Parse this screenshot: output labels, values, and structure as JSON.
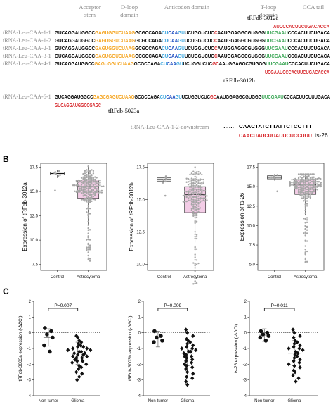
{
  "colors": {
    "acceptor": "#000000",
    "dloop": "#f5a623",
    "anticodon": "#3fa9e0",
    "anticodon_core": "#1f4fc2",
    "tloop": "#3aa655",
    "red": "#d7262a",
    "box_fill": "#f3cce6",
    "control_box": "#e8e8e8",
    "dot": "#a6a6a6"
  },
  "panel_a": {
    "domains": [
      "Acceptor stem",
      "D-loop domain",
      "Anticodon domain",
      "T-loop domain",
      "CCA tail"
    ],
    "rows": [
      {
        "name": "tRNA-Leu-CAA-1-1",
        "segs": [
          [
            "GUCAGGAUGGCC",
            "acceptor"
          ],
          [
            "GAGUGGUCUAAG",
            "dloop"
          ],
          [
            "GCGCCAGA",
            "acceptor"
          ],
          [
            "CU",
            "anticodon"
          ],
          [
            "CAA",
            "anticodon_core"
          ],
          [
            "GU",
            "anticodon"
          ],
          [
            "UCUGGUCUC",
            "acceptor"
          ],
          [
            "C",
            "red"
          ],
          [
            "AAUGGAGGCGUGGG",
            "acceptor"
          ],
          [
            "UUCGAAU",
            "tloop"
          ],
          [
            "CCCACUUCUGACA",
            "acceptor"
          ]
        ]
      },
      {
        "name": "tRNA-Leu-CAA-1-2",
        "segs": [
          [
            "GUCAGGAUGGCC",
            "acceptor"
          ],
          [
            "GAGUGGUCUAAG",
            "dloop"
          ],
          [
            "GCGCCAGA",
            "acceptor"
          ],
          [
            "CU",
            "anticodon"
          ],
          [
            "CAA",
            "anticodon_core"
          ],
          [
            "GU",
            "anticodon"
          ],
          [
            "UCUGGUCUC",
            "acceptor"
          ],
          [
            "C",
            "red"
          ],
          [
            "AAUGGAGGCGUGGG",
            "acceptor"
          ],
          [
            "UUCGAAU",
            "tloop"
          ],
          [
            "CCCACUUCUGACA",
            "acceptor"
          ]
        ]
      },
      {
        "name": "tRNA-Leu-CAA-2-1",
        "segs": [
          [
            "GUCAGGAUGGCC",
            "acceptor"
          ],
          [
            "GAGUGGUCUAAG",
            "dloop"
          ],
          [
            "GCGCCAGA",
            "acceptor"
          ],
          [
            "CU",
            "anticodon"
          ],
          [
            "CAA",
            "anticodon_core"
          ],
          [
            "GU",
            "anticodon"
          ],
          [
            "UCUGGUCUC",
            "acceptor"
          ],
          [
            "C",
            "red"
          ],
          [
            "AAUGGAGGCGUGGG",
            "acceptor"
          ],
          [
            "UUCGAAU",
            "tloop"
          ],
          [
            "CCCACUUCUGACA",
            "acceptor"
          ]
        ]
      },
      {
        "name": "tRNA-Leu-CAA-3-1",
        "segs": [
          [
            "GUCAGGAUGGCC",
            "acceptor"
          ],
          [
            "GAGUGGUCUAAG",
            "dloop"
          ],
          [
            "GCGCCAGA",
            "acceptor"
          ],
          [
            "CU",
            "anticodon"
          ],
          [
            "CAA",
            "anticodon_core"
          ],
          [
            "GU",
            "anticodon"
          ],
          [
            "UCUGGUCUC",
            "acceptor"
          ],
          [
            "C",
            "red"
          ],
          [
            "AAUGGAGGCGUGGG",
            "acceptor"
          ],
          [
            "UUCGAAU",
            "tloop"
          ],
          [
            "CCCACUUCUGACA",
            "acceptor"
          ]
        ]
      },
      {
        "name": "tRNA-Leu-CAA-4-1",
        "segs": [
          [
            "GUCAGGAUGGCC",
            "acceptor"
          ],
          [
            "GAGUGGUCUAAG",
            "dloop"
          ],
          [
            "GCGCCAGA",
            "acceptor"
          ],
          [
            "CU",
            "anticodon"
          ],
          [
            "CAA",
            "anticodon_core"
          ],
          [
            "GU",
            "anticodon"
          ],
          [
            "UCUGGUCUC",
            "acceptor"
          ],
          [
            "GC",
            "red"
          ],
          [
            "AAUGGAGGCGUGGG",
            "acceptor"
          ],
          [
            "UUCGAAU",
            "tloop"
          ],
          [
            "CCCACUUCUGACA",
            "acceptor"
          ]
        ]
      }
    ],
    "row6": {
      "name": "tRNA-Leu-CAA-6-1",
      "segs": [
        [
          "GUCAGGAUGGCC",
          "acceptor"
        ],
        [
          "GAGCGAGUCUAAG",
          "dloop"
        ],
        [
          "GCGCCAGA",
          "acceptor"
        ],
        [
          "CU",
          "anticodon"
        ],
        [
          "CAA",
          "anticodon_core"
        ],
        [
          "GU",
          "anticodon"
        ],
        [
          "UCUGGUCUC",
          "acceptor"
        ],
        [
          "GC",
          "red"
        ],
        [
          "AAUGGAGGCGUGGG",
          "acceptor"
        ],
        [
          "UUCGAAU",
          "tloop"
        ],
        [
          "CCCACUUCUUUGACA",
          "acceptor"
        ]
      ]
    },
    "frag_3012a_label": "tRFdb-3012a",
    "frag_3012a_seq": "AUCCCACUUCUGACACCA",
    "frag_3012b_label": "tRFdb-3012b",
    "frag_3012b_seq": "UCGAAUCCCACUUCUGACACCA",
    "frag_5023a_seq": "GUCAGGAUGGCCGAGC",
    "frag_5023a_label": "tRFdb-5023a",
    "downstream_name": "tRNA-Leu-CAA-1-2-downstream",
    "downstream_dots": "……",
    "downstream_seq": "CAACTATCTTATTCTCCTTT",
    "ts26_seq": "CAACUAUCUUAUUCUCCUUU",
    "ts26_label": "ts-26"
  },
  "panel_b": {
    "label": "B",
    "categories": [
      "Control",
      "Astrocytoma"
    ],
    "charts": [
      {
        "ylabel": "Expression of tRFdb-3012a",
        "ylim": [
          7.5,
          17.5
        ],
        "ticks": [
          "7.5",
          "10.0",
          "12.5",
          "15.0",
          "17.5"
        ],
        "boxes": [
          {
            "q1": 16.7,
            "med": 16.85,
            "q3": 17.0,
            "lo": 16.4,
            "hi": 17.2
          },
          {
            "q1": 14.3,
            "med": 15.5,
            "q3": 16.2,
            "lo": 11.6,
            "hi": 17.6
          }
        ],
        "control_points": [
          16.6,
          16.7,
          16.8,
          16.9,
          17.0,
          17.1,
          15.1
        ],
        "astro_min": 7.8
      },
      {
        "ylabel": "Expression of tRFdb-3012b",
        "ylim": [
          10.0,
          17.5
        ],
        "ticks": [
          "10.0",
          "12.5",
          "15.0",
          "17.5"
        ],
        "boxes": [
          {
            "q1": 16.4,
            "med": 16.55,
            "q3": 16.7,
            "lo": 16.2,
            "hi": 16.9
          },
          {
            "q1": 14.0,
            "med": 15.4,
            "q3": 16.0,
            "lo": 11.7,
            "hi": 17.5
          }
        ],
        "control_points": [
          16.3,
          16.4,
          16.5,
          16.6,
          16.7,
          16.8,
          15.3
        ],
        "astro_min": 8.4
      },
      {
        "ylabel": "Expression of ts-26",
        "ylim": [
          5.0,
          17.5
        ],
        "ticks": [
          "5.0",
          "7.5",
          "10.0",
          "12.5",
          "15.0",
          "17.5"
        ],
        "boxes": [
          {
            "q1": 16.0,
            "med": 16.2,
            "q3": 16.4,
            "lo": 15.8,
            "hi": 16.6
          },
          {
            "q1": 14.0,
            "med": 15.3,
            "q3": 15.9,
            "lo": 11.3,
            "hi": 16.6
          }
        ],
        "control_points": [
          16.0,
          16.1,
          16.2,
          16.3,
          16.4,
          16.5,
          14.4
        ],
        "astro_min": 5.3
      }
    ]
  },
  "panel_c": {
    "label": "C",
    "categories": [
      "Non-tumor",
      "Glioma"
    ],
    "charts": [
      {
        "ylabel": "tRFdb-3003a expression (-ΔΔCt)",
        "p": "P=0.007",
        "ylim": [
          -4,
          2
        ],
        "ticks": [
          "-4",
          "-3",
          "-2",
          "-1",
          "0",
          "1",
          "2"
        ],
        "normal": [
          0.3,
          0.1,
          -0.1,
          -0.3,
          -0.8,
          -1.2
        ],
        "normal_stats": {
          "mean": -0.3,
          "sd": 0.55
        },
        "glioma": [
          -0.2,
          -0.3,
          -0.5,
          -0.6,
          -0.7,
          -0.8,
          -0.9,
          -0.9,
          -1.0,
          -1.0,
          -1.1,
          -1.1,
          -1.2,
          -1.2,
          -1.3,
          -1.3,
          -1.4,
          -1.4,
          -1.5,
          -1.5,
          -1.6,
          -1.6,
          -1.7,
          -1.8,
          -1.8,
          -1.9,
          -2.0,
          -2.1,
          -2.2,
          -2.3,
          -2.5,
          -2.6,
          -2.8,
          -3.0
        ],
        "glioma_stats": {
          "mean": -1.3,
          "sd": 0.7
        }
      },
      {
        "ylabel": "tRFdb-3003b expression (-ΔΔCt)",
        "p": "P=0.009",
        "ylim": [
          -4,
          2
        ],
        "ticks": [
          "-4",
          "-3",
          "-2",
          "-1",
          "0",
          "1",
          "2"
        ],
        "normal": [
          0.1,
          -0.2,
          -0.3,
          -0.5,
          -0.6
        ],
        "normal_stats": {
          "mean": -0.4,
          "sd": 0.5
        },
        "glioma": [
          0.2,
          0.0,
          -0.2,
          -0.4,
          -0.5,
          -0.6,
          -0.7,
          -0.8,
          -0.9,
          -1.0,
          -1.0,
          -1.1,
          -1.2,
          -1.2,
          -1.3,
          -1.4,
          -1.5,
          -1.5,
          -1.6,
          -1.7,
          -1.8,
          -1.9,
          -2.0,
          -2.1,
          -2.2,
          -2.3,
          -2.5,
          -2.6,
          -2.8,
          -2.9,
          -3.1,
          -3.3
        ],
        "glioma_stats": {
          "mean": -1.3,
          "sd": 0.8
        }
      },
      {
        "ylabel": "ts-26 expression (-ΔΔCt)",
        "p": "P=0.011",
        "ylim": [
          -4,
          2
        ],
        "ticks": [
          "-4",
          "-3",
          "-2",
          "-1",
          "0",
          "1",
          "2"
        ],
        "normal": [
          0.1,
          0.0,
          -0.1,
          -0.2,
          -0.3,
          -0.5
        ],
        "normal_stats": {
          "mean": -0.15,
          "sd": 0.4
        },
        "glioma": [
          0.2,
          0.0,
          -0.2,
          -0.3,
          -0.5,
          -0.6,
          -0.7,
          -0.8,
          -0.9,
          -1.0,
          -1.0,
          -1.1,
          -1.2,
          -1.3,
          -1.4,
          -1.5,
          -1.6,
          -1.7,
          -1.8,
          -1.9,
          -2.0,
          -2.1,
          -2.2,
          -2.4,
          -2.5,
          -2.7,
          -2.9,
          -3.1
        ],
        "glioma_stats": {
          "mean": -1.3,
          "sd": 0.8
        }
      }
    ]
  }
}
